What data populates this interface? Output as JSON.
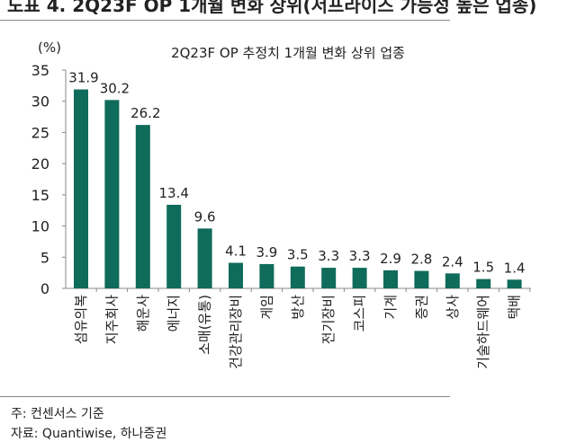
{
  "figure_title": "도표 4. 2Q23F OP 1개월 변화 상위(서프라이즈 가능성 높은 업종)",
  "note": "주: 컨센서스 기준",
  "source": "자료: Quantiwise, 하나증권",
  "chart_data": {
    "type": "bar",
    "title": "2Q23F OP 추정치 1개월 변화 상위 업종",
    "ylabel": "(%)",
    "ylim": [
      0,
      35
    ],
    "yticks": [
      0,
      5,
      10,
      15,
      20,
      25,
      30,
      35
    ],
    "grid": false,
    "bar_color": "#0f6b5a",
    "categories": [
      "섬유의복",
      "지주회사",
      "해운사",
      "에너지",
      "소매(유통)",
      "건강관리장비",
      "게임",
      "방산",
      "전기장비",
      "코스피",
      "기계",
      "증권",
      "상사",
      "기술하드웨어",
      "택배"
    ],
    "values": [
      31.9,
      30.2,
      26.2,
      13.4,
      9.6,
      4.1,
      3.9,
      3.5,
      3.3,
      3.3,
      2.9,
      2.8,
      2.4,
      1.5,
      1.4
    ],
    "labels": [
      "31.9",
      "30.2",
      "26.2",
      "13.4",
      "9.6",
      "4.1",
      "3.9",
      "3.5",
      "3.3",
      "3.3",
      "2.9",
      "2.8",
      "2.4",
      "1.5",
      "1.4"
    ]
  }
}
